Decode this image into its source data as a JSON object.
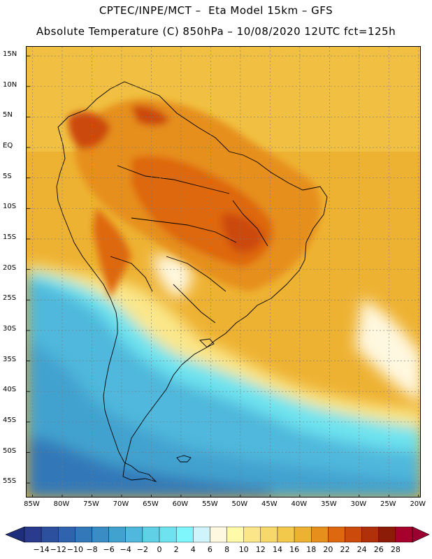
{
  "header": {
    "line1": "CPTEC/INPE/MCT –  Eta Model 15km – GFS",
    "line2": "Absolute Temperature (C) 850hPa – 10/08/2020 12UTC fct=125h"
  },
  "map": {
    "lat_labels": [
      "15N",
      "10N",
      "5N",
      "EQ",
      "5S",
      "10S",
      "15S",
      "20S",
      "25S",
      "30S",
      "35S",
      "40S",
      "45S",
      "50S",
      "55S"
    ],
    "lat_values": [
      15,
      10,
      5,
      0,
      -5,
      -10,
      -15,
      -20,
      -25,
      -30,
      -35,
      -40,
      -45,
      -50,
      -55
    ],
    "lon_labels": [
      "85W",
      "80W",
      "75W",
      "70W",
      "65W",
      "60W",
      "55W",
      "50W",
      "45W",
      "40W",
      "35W",
      "30W",
      "25W",
      "20W"
    ],
    "lon_values": [
      -85,
      -80,
      -75,
      -70,
      -65,
      -60,
      -55,
      -50,
      -45,
      -40,
      -35,
      -30,
      -25,
      -20
    ],
    "extent": {
      "lon_min": -86,
      "lon_max": -19.5,
      "lat_min": -57.5,
      "lat_max": 16.5
    },
    "grid": true,
    "field": "temperature_850hPa_celsius"
  },
  "colorbar": {
    "ticks": [
      "−14",
      "−12",
      "−10",
      "−8",
      "−6",
      "−4",
      "−2",
      "0",
      "2",
      "4",
      "6",
      "8",
      "10",
      "12",
      "14",
      "16",
      "18",
      "20",
      "22",
      "24",
      "26",
      "28"
    ],
    "colors": [
      "#2a3a8c",
      "#2c4f9e",
      "#2f63ae",
      "#3378b8",
      "#3a8cc4",
      "#42a2cf",
      "#4fb8dc",
      "#5fd0e6",
      "#6ee3ef",
      "#7ef6fb",
      "#cff4fb",
      "#fff8e0",
      "#fffaa8",
      "#fbe78a",
      "#f7d86a",
      "#f3c94c",
      "#eeb232",
      "#e68f1d",
      "#de6810",
      "#cc4a0c",
      "#b0300a",
      "#8c1c08",
      "#a8002c"
    ],
    "under_color": "#1f2e7a",
    "over_color": "#9c0030"
  }
}
